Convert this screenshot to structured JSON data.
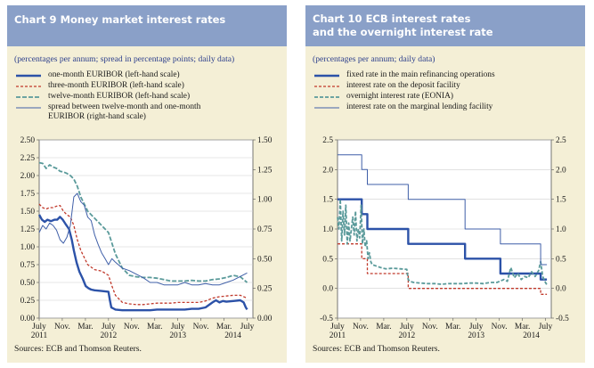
{
  "chart_data": [
    {
      "type": "line",
      "title_lines": [
        "Chart 9 Money market interest rates"
      ],
      "subtitle": "(percentages per annum; spread in percentage points; daily data)",
      "xlabel": "",
      "ylabel": "",
      "x_range": [
        2011.5,
        2014.583
      ],
      "ylim": [
        0,
        2.5
      ],
      "ylim_right": [
        0,
        1.5
      ],
      "y_ticks_left": [
        "2.50",
        "2.25",
        "2.00",
        "1.75",
        "1.50",
        "1.25",
        "1.00",
        "0.75",
        "0.50",
        "0.25",
        "0.00"
      ],
      "y_ticks_right": [
        "1.50",
        "1.25",
        "1.00",
        "0.75",
        "0.50",
        "0.25",
        "0.00"
      ],
      "x_ticks": [
        {
          "x": 2011.5,
          "label": "July",
          "year": "2011"
        },
        {
          "x": 2011.833,
          "label": "Nov.",
          "year": ""
        },
        {
          "x": 2012.167,
          "label": "Mar.",
          "year": ""
        },
        {
          "x": 2012.5,
          "label": "July",
          "year": "2012"
        },
        {
          "x": 2012.833,
          "label": "Nov.",
          "year": ""
        },
        {
          "x": 2013.167,
          "label": "Mar.",
          "year": ""
        },
        {
          "x": 2013.5,
          "label": "July",
          "year": "2013"
        },
        {
          "x": 2013.833,
          "label": "Nov.",
          "year": ""
        },
        {
          "x": 2014.167,
          "label": "Mar.",
          "year": "2014"
        },
        {
          "x": 2014.5,
          "label": "July",
          "year": ""
        }
      ],
      "grid": true,
      "legend_position": "top-left",
      "series": [
        {
          "name": "one-month EURIBOR (left-hand scale)",
          "axis": "left",
          "color": "#2c52a8",
          "dash": "",
          "width": 2.4,
          "x": [
            2011.5,
            2011.54,
            2011.58,
            2011.62,
            2011.67,
            2011.72,
            2011.76,
            2011.8,
            2011.84,
            2011.88,
            2011.93,
            2011.97,
            2012.0,
            2012.04,
            2012.08,
            2012.13,
            2012.17,
            2012.21,
            2012.25,
            2012.3,
            2012.4,
            2012.5,
            2012.52,
            2012.54,
            2012.6,
            2012.7,
            2012.8,
            2012.9,
            2013.0,
            2013.1,
            2013.2,
            2013.3,
            2013.4,
            2013.5,
            2013.6,
            2013.7,
            2013.8,
            2013.9,
            2014.0,
            2014.05,
            2014.1,
            2014.15,
            2014.2,
            2014.3,
            2014.4,
            2014.45,
            2014.48,
            2014.5
          ],
          "y": [
            1.45,
            1.38,
            1.35,
            1.38,
            1.36,
            1.38,
            1.38,
            1.42,
            1.38,
            1.32,
            1.25,
            1.1,
            0.95,
            0.78,
            0.65,
            0.55,
            0.45,
            0.42,
            0.4,
            0.39,
            0.38,
            0.37,
            0.25,
            0.15,
            0.12,
            0.11,
            0.11,
            0.11,
            0.11,
            0.11,
            0.12,
            0.12,
            0.12,
            0.12,
            0.12,
            0.13,
            0.13,
            0.15,
            0.22,
            0.25,
            0.22,
            0.24,
            0.23,
            0.24,
            0.25,
            0.22,
            0.15,
            0.12
          ]
        },
        {
          "name": "three-month EURIBOR (left-hand scale)",
          "axis": "left",
          "color": "#c0392b",
          "dash": "3,2",
          "width": 1.3,
          "x": [
            2011.5,
            2011.55,
            2011.6,
            2011.65,
            2011.7,
            2011.75,
            2011.8,
            2011.85,
            2011.9,
            2011.95,
            2012.0,
            2012.05,
            2012.1,
            2012.15,
            2012.2,
            2012.3,
            2012.4,
            2012.5,
            2012.55,
            2012.6,
            2012.7,
            2012.8,
            2012.9,
            2013.0,
            2013.1,
            2013.2,
            2013.3,
            2013.4,
            2013.5,
            2013.6,
            2013.7,
            2013.8,
            2013.9,
            2014.0,
            2014.1,
            2014.2,
            2014.3,
            2014.4,
            2014.5
          ],
          "y": [
            1.6,
            1.55,
            1.53,
            1.55,
            1.55,
            1.57,
            1.58,
            1.5,
            1.45,
            1.42,
            1.3,
            1.1,
            0.95,
            0.85,
            0.75,
            0.68,
            0.66,
            0.6,
            0.45,
            0.32,
            0.22,
            0.2,
            0.19,
            0.19,
            0.2,
            0.21,
            0.21,
            0.21,
            0.22,
            0.22,
            0.22,
            0.22,
            0.24,
            0.28,
            0.3,
            0.31,
            0.32,
            0.32,
            0.28
          ]
        },
        {
          "name": "twelve-month EURIBOR (left-hand scale)",
          "axis": "left",
          "color": "#5a9a9a",
          "dash": "5,2",
          "width": 1.8,
          "x": [
            2011.5,
            2011.55,
            2011.6,
            2011.65,
            2011.7,
            2011.75,
            2011.8,
            2011.85,
            2011.9,
            2011.95,
            2012.0,
            2012.05,
            2012.1,
            2012.15,
            2012.2,
            2012.25,
            2012.3,
            2012.4,
            2012.5,
            2012.55,
            2012.6,
            2012.7,
            2012.8,
            2012.9,
            2013.0,
            2013.1,
            2013.2,
            2013.3,
            2013.4,
            2013.5,
            2013.6,
            2013.7,
            2013.8,
            2013.9,
            2014.0,
            2014.1,
            2014.2,
            2014.3,
            2014.4,
            2014.5
          ],
          "y": [
            2.18,
            2.17,
            2.1,
            2.15,
            2.12,
            2.1,
            2.06,
            2.05,
            2.03,
            2.0,
            1.95,
            1.85,
            1.7,
            1.6,
            1.5,
            1.45,
            1.4,
            1.3,
            1.2,
            1.05,
            0.9,
            0.7,
            0.6,
            0.58,
            0.57,
            0.57,
            0.56,
            0.54,
            0.52,
            0.52,
            0.52,
            0.53,
            0.52,
            0.52,
            0.54,
            0.55,
            0.57,
            0.6,
            0.58,
            0.5
          ]
        },
        {
          "name": "spread between twelve-month and one-month EURIBOR (right-hand scale)",
          "axis": "right",
          "color": "#3f5fa8",
          "dash": "",
          "width": 1.0,
          "x": [
            2011.5,
            2011.55,
            2011.6,
            2011.65,
            2011.7,
            2011.75,
            2011.8,
            2011.85,
            2011.9,
            2011.95,
            2012.0,
            2012.05,
            2012.1,
            2012.15,
            2012.2,
            2012.25,
            2012.3,
            2012.35,
            2012.4,
            2012.45,
            2012.5,
            2012.55,
            2012.6,
            2012.7,
            2012.8,
            2012.9,
            2013.0,
            2013.1,
            2013.2,
            2013.3,
            2013.4,
            2013.5,
            2013.6,
            2013.7,
            2013.8,
            2013.9,
            2014.0,
            2014.1,
            2014.2,
            2014.3,
            2014.4,
            2014.5
          ],
          "y": [
            0.72,
            0.78,
            0.75,
            0.8,
            0.78,
            0.74,
            0.66,
            0.63,
            0.68,
            0.78,
            1.02,
            1.05,
            0.98,
            0.95,
            0.85,
            0.82,
            0.7,
            0.62,
            0.55,
            0.5,
            0.45,
            0.5,
            0.47,
            0.42,
            0.4,
            0.37,
            0.34,
            0.3,
            0.3,
            0.28,
            0.28,
            0.28,
            0.3,
            0.28,
            0.28,
            0.29,
            0.28,
            0.28,
            0.3,
            0.32,
            0.35,
            0.38
          ]
        }
      ],
      "sources": "Sources: ECB and Thomson Reuters."
    },
    {
      "type": "line",
      "title_lines": [
        "Chart 10 ECB interest rates",
        "and the overnight interest rate"
      ],
      "subtitle": "(percentages per annum; daily data)",
      "xlabel": "",
      "ylabel": "",
      "x_range": [
        2011.5,
        2014.583
      ],
      "ylim": [
        -0.5,
        2.5
      ],
      "ylim_right": [
        -0.5,
        2.5
      ],
      "y_ticks_left": [
        "2.5",
        "2.0",
        "1.5",
        "1.0",
        "0.5",
        "0.0",
        "-0.5"
      ],
      "y_ticks_right": [
        "2.5",
        "2.0",
        "1.5",
        "1.0",
        "0.5",
        "0.0",
        "-0.5"
      ],
      "x_ticks": [
        {
          "x": 2011.5,
          "label": "July",
          "year": "2011"
        },
        {
          "x": 2011.833,
          "label": "Nov.",
          "year": ""
        },
        {
          "x": 2012.167,
          "label": "Mar.",
          "year": ""
        },
        {
          "x": 2012.5,
          "label": "July",
          "year": "2012"
        },
        {
          "x": 2012.833,
          "label": "Nov.",
          "year": ""
        },
        {
          "x": 2013.167,
          "label": "Mar.",
          "year": ""
        },
        {
          "x": 2013.5,
          "label": "July",
          "year": "2013"
        },
        {
          "x": 2013.833,
          "label": "Nov.",
          "year": ""
        },
        {
          "x": 2014.167,
          "label": "Mar.",
          "year": "2014"
        },
        {
          "x": 2014.5,
          "label": "July",
          "year": ""
        }
      ],
      "grid": true,
      "legend_position": "top-left",
      "series": [
        {
          "name": "fixed rate in the main refinancing operations",
          "axis": "left",
          "color": "#2c52a8",
          "dash": "",
          "width": 2.4,
          "x": [
            2011.5,
            2011.85,
            2011.85,
            2011.93,
            2011.93,
            2012.52,
            2012.52,
            2013.34,
            2013.34,
            2013.85,
            2013.85,
            2014.43,
            2014.43,
            2014.52
          ],
          "y": [
            1.5,
            1.5,
            1.25,
            1.25,
            1.0,
            1.0,
            0.75,
            0.75,
            0.5,
            0.5,
            0.25,
            0.25,
            0.15,
            0.15
          ]
        },
        {
          "name": "interest rate on the deposit facility",
          "axis": "left",
          "color": "#c0392b",
          "dash": "3,2",
          "width": 1.3,
          "x": [
            2011.5,
            2011.85,
            2011.85,
            2011.93,
            2011.93,
            2012.52,
            2012.52,
            2014.43,
            2014.43,
            2014.52
          ],
          "y": [
            0.75,
            0.75,
            0.5,
            0.5,
            0.25,
            0.25,
            0.0,
            0.0,
            -0.1,
            -0.1
          ]
        },
        {
          "name": "overnight interest rate (EONIA)",
          "axis": "left",
          "color": "#5a9a9a",
          "dash": "4,2",
          "width": 1.8,
          "x": [
            2011.5,
            2011.52,
            2011.54,
            2011.56,
            2011.58,
            2011.6,
            2011.62,
            2011.64,
            2011.66,
            2011.68,
            2011.7,
            2011.72,
            2011.74,
            2011.76,
            2011.78,
            2011.8,
            2011.82,
            2011.84,
            2011.86,
            2011.88,
            2011.9,
            2011.92,
            2011.94,
            2011.96,
            2011.98,
            2012.0,
            2012.05,
            2012.1,
            2012.15,
            2012.2,
            2012.3,
            2012.4,
            2012.5,
            2012.52,
            2012.54,
            2012.6,
            2012.7,
            2012.8,
            2012.9,
            2013.0,
            2013.1,
            2013.2,
            2013.3,
            2013.4,
            2013.5,
            2013.6,
            2013.7,
            2013.8,
            2013.9,
            2013.95,
            2014.0,
            2014.05,
            2014.1,
            2014.15,
            2014.2,
            2014.25,
            2014.3,
            2014.35,
            2014.4,
            2014.43,
            2014.46,
            2014.5,
            2014.52
          ],
          "y": [
            1.2,
            1.0,
            1.5,
            0.8,
            1.3,
            0.9,
            1.4,
            0.75,
            1.1,
            0.8,
            1.0,
            1.2,
            0.9,
            1.3,
            0.8,
            1.0,
            0.85,
            1.4,
            0.75,
            1.0,
            0.7,
            0.8,
            0.5,
            0.6,
            0.45,
            0.4,
            0.38,
            0.36,
            0.34,
            0.33,
            0.34,
            0.33,
            0.32,
            0.15,
            0.12,
            0.1,
            0.09,
            0.08,
            0.08,
            0.07,
            0.08,
            0.08,
            0.08,
            0.09,
            0.09,
            0.08,
            0.1,
            0.1,
            0.15,
            0.12,
            0.35,
            0.18,
            0.25,
            0.15,
            0.2,
            0.18,
            0.28,
            0.2,
            0.3,
            0.45,
            0.2,
            0.1,
            0.06
          ]
        },
        {
          "name": "interest rate on the marginal lending facility",
          "axis": "left",
          "color": "#3f5fa8",
          "dash": "",
          "width": 1.0,
          "x": [
            2011.5,
            2011.85,
            2011.85,
            2011.93,
            2011.93,
            2012.52,
            2012.52,
            2013.34,
            2013.34,
            2013.85,
            2013.85,
            2014.43,
            2014.43,
            2014.52
          ],
          "y": [
            2.25,
            2.25,
            2.0,
            2.0,
            1.75,
            1.75,
            1.5,
            1.5,
            1.0,
            1.0,
            0.75,
            0.75,
            0.4,
            0.4
          ]
        }
      ],
      "sources": "Sources: ECB and Thomson Reuters."
    }
  ]
}
